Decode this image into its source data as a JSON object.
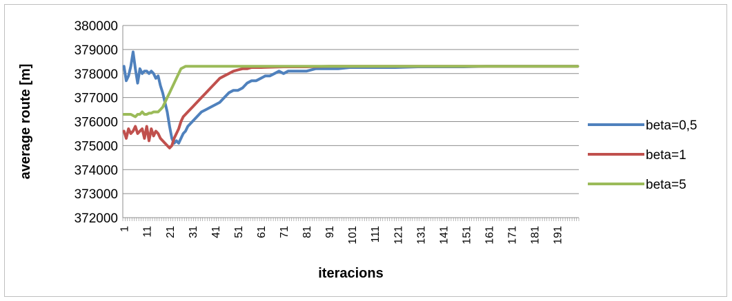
{
  "chart_data": {
    "type": "line",
    "xlabel": "iteracions",
    "ylabel": "average route [m]",
    "xlim": [
      1,
      200
    ],
    "ylim": [
      372000,
      380000
    ],
    "ytick_values": [
      372000,
      373000,
      374000,
      375000,
      376000,
      377000,
      378000,
      379000,
      380000
    ],
    "ytick_labels": [
      "372000",
      "373000",
      "374000",
      "375000",
      "376000",
      "377000",
      "378000",
      "379000",
      "380000"
    ],
    "xtick_labels": [
      "1",
      "11",
      "21",
      "31",
      "41",
      "51",
      "61",
      "71",
      "81",
      "91",
      "101",
      "111",
      "121",
      "131",
      "141",
      "151",
      "161",
      "171",
      "181",
      "191"
    ],
    "grid": "horizontal",
    "legend_position": "right",
    "series": [
      {
        "name": "beta=0,5",
        "color": "#4f81bd",
        "points": [
          [
            1,
            378300
          ],
          [
            2,
            377700
          ],
          [
            3,
            377900
          ],
          [
            4,
            378300
          ],
          [
            5,
            378900
          ],
          [
            6,
            378200
          ],
          [
            7,
            377600
          ],
          [
            8,
            378200
          ],
          [
            9,
            378000
          ],
          [
            10,
            378100
          ],
          [
            11,
            378100
          ],
          [
            12,
            378000
          ],
          [
            13,
            378100
          ],
          [
            14,
            378000
          ],
          [
            15,
            377800
          ],
          [
            16,
            377900
          ],
          [
            17,
            377500
          ],
          [
            18,
            377200
          ],
          [
            19,
            376800
          ],
          [
            20,
            376400
          ],
          [
            21,
            375800
          ],
          [
            22,
            375300
          ],
          [
            23,
            375100
          ],
          [
            24,
            375200
          ],
          [
            25,
            375100
          ],
          [
            26,
            375300
          ],
          [
            27,
            375500
          ],
          [
            28,
            375600
          ],
          [
            29,
            375800
          ],
          [
            30,
            375900
          ],
          [
            31,
            376000
          ],
          [
            33,
            376200
          ],
          [
            35,
            376400
          ],
          [
            37,
            376500
          ],
          [
            39,
            376600
          ],
          [
            41,
            376700
          ],
          [
            43,
            376800
          ],
          [
            45,
            377000
          ],
          [
            47,
            377200
          ],
          [
            49,
            377300
          ],
          [
            51,
            377300
          ],
          [
            53,
            377400
          ],
          [
            55,
            377600
          ],
          [
            57,
            377700
          ],
          [
            59,
            377700
          ],
          [
            61,
            377800
          ],
          [
            63,
            377900
          ],
          [
            65,
            377900
          ],
          [
            67,
            378000
          ],
          [
            69,
            378100
          ],
          [
            71,
            378000
          ],
          [
            73,
            378100
          ],
          [
            75,
            378100
          ],
          [
            77,
            378100
          ],
          [
            79,
            378100
          ],
          [
            81,
            378100
          ],
          [
            85,
            378200
          ],
          [
            90,
            378200
          ],
          [
            95,
            378200
          ],
          [
            100,
            378250
          ],
          [
            110,
            378250
          ],
          [
            120,
            378250
          ],
          [
            130,
            378280
          ],
          [
            140,
            378280
          ],
          [
            150,
            378280
          ],
          [
            160,
            378300
          ],
          [
            170,
            378300
          ],
          [
            180,
            378300
          ],
          [
            190,
            378300
          ],
          [
            200,
            378300
          ]
        ]
      },
      {
        "name": "beta=1",
        "color": "#c0504d",
        "points": [
          [
            1,
            375600
          ],
          [
            2,
            375300
          ],
          [
            3,
            375700
          ],
          [
            4,
            375500
          ],
          [
            5,
            375600
          ],
          [
            6,
            375800
          ],
          [
            7,
            375500
          ],
          [
            8,
            375600
          ],
          [
            9,
            375700
          ],
          [
            10,
            375300
          ],
          [
            11,
            375800
          ],
          [
            12,
            375200
          ],
          [
            13,
            375700
          ],
          [
            14,
            375400
          ],
          [
            15,
            375600
          ],
          [
            16,
            375500
          ],
          [
            17,
            375300
          ],
          [
            18,
            375200
          ],
          [
            19,
            375100
          ],
          [
            20,
            375000
          ],
          [
            21,
            374900
          ],
          [
            22,
            375000
          ],
          [
            23,
            375300
          ],
          [
            24,
            375500
          ],
          [
            25,
            375700
          ],
          [
            26,
            376000
          ],
          [
            27,
            376200
          ],
          [
            29,
            376400
          ],
          [
            31,
            376600
          ],
          [
            33,
            376800
          ],
          [
            35,
            377000
          ],
          [
            37,
            377200
          ],
          [
            39,
            377400
          ],
          [
            41,
            377600
          ],
          [
            43,
            377800
          ],
          [
            45,
            377900
          ],
          [
            47,
            378000
          ],
          [
            49,
            378100
          ],
          [
            51,
            378150
          ],
          [
            53,
            378200
          ],
          [
            55,
            378200
          ],
          [
            57,
            378250
          ],
          [
            61,
            378250
          ],
          [
            71,
            378280
          ],
          [
            81,
            378280
          ],
          [
            91,
            378300
          ],
          [
            101,
            378300
          ],
          [
            121,
            378300
          ],
          [
            141,
            378300
          ],
          [
            161,
            378300
          ],
          [
            181,
            378300
          ],
          [
            200,
            378300
          ]
        ]
      },
      {
        "name": "beta=5",
        "color": "#9bbb59",
        "points": [
          [
            1,
            376300
          ],
          [
            2,
            376300
          ],
          [
            3,
            376300
          ],
          [
            4,
            376300
          ],
          [
            5,
            376250
          ],
          [
            6,
            376200
          ],
          [
            7,
            376300
          ],
          [
            8,
            376300
          ],
          [
            9,
            376400
          ],
          [
            10,
            376300
          ],
          [
            11,
            376300
          ],
          [
            12,
            376350
          ],
          [
            13,
            376350
          ],
          [
            14,
            376400
          ],
          [
            15,
            376400
          ],
          [
            16,
            376400
          ],
          [
            17,
            376500
          ],
          [
            18,
            376600
          ],
          [
            19,
            376800
          ],
          [
            20,
            377000
          ],
          [
            21,
            377200
          ],
          [
            22,
            377400
          ],
          [
            23,
            377600
          ],
          [
            24,
            377800
          ],
          [
            25,
            378000
          ],
          [
            26,
            378200
          ],
          [
            27,
            378250
          ],
          [
            28,
            378300
          ],
          [
            29,
            378300
          ],
          [
            31,
            378300
          ],
          [
            41,
            378300
          ],
          [
            61,
            378300
          ],
          [
            81,
            378300
          ],
          [
            101,
            378300
          ],
          [
            121,
            378300
          ],
          [
            141,
            378300
          ],
          [
            161,
            378300
          ],
          [
            181,
            378300
          ],
          [
            200,
            378300
          ]
        ]
      }
    ]
  }
}
